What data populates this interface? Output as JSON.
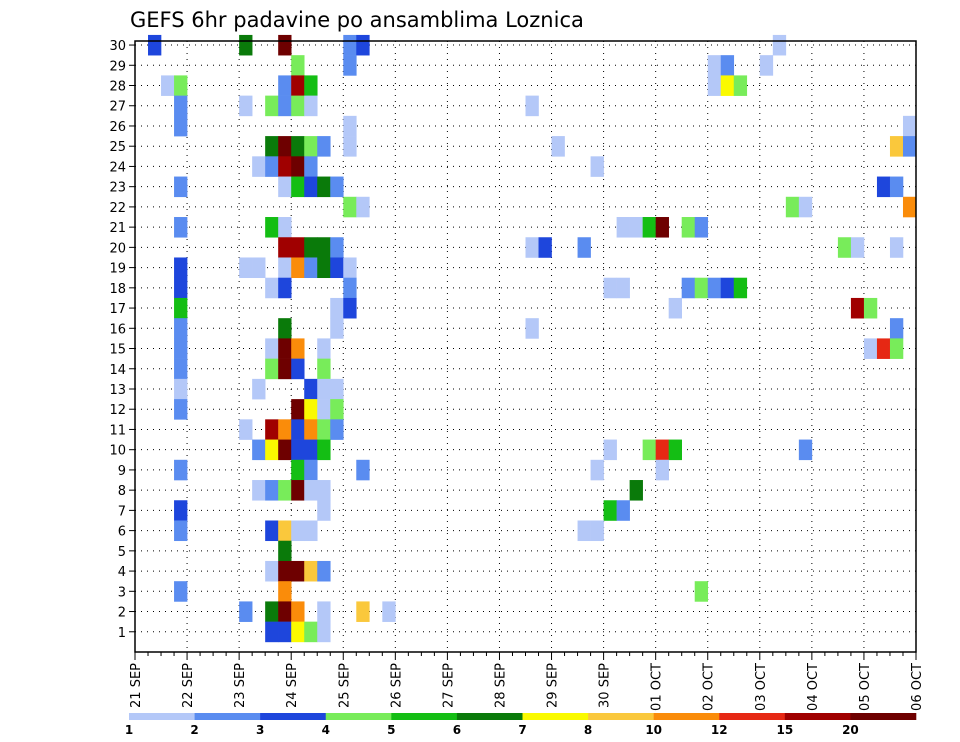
{
  "chart_data": {
    "type": "heatmap",
    "title": "GEFS 6hr padavine po ansamblima Loznica",
    "xlabel": "",
    "ylabel": "",
    "x_ticks": [
      "21 SEP",
      "22 SEP",
      "23 SEP",
      "24 SEP",
      "25 SEP",
      "26 SEP",
      "27 SEP",
      "28 SEP",
      "29 SEP",
      "30 SEP",
      "01 OCT",
      "02 OCT",
      "03 OCT",
      "04 OCT",
      "05 OCT",
      "06 OCT"
    ],
    "x_steps_per_day": 4,
    "x_range_steps": [
      0,
      60
    ],
    "y_ticks": [
      1,
      2,
      3,
      4,
      5,
      6,
      7,
      8,
      9,
      10,
      11,
      12,
      13,
      14,
      15,
      16,
      17,
      18,
      19,
      20,
      21,
      22,
      23,
      24,
      25,
      26,
      27,
      28,
      29,
      30
    ],
    "y_range": [
      0,
      30.2
    ],
    "grid": true,
    "legend": {
      "placement": "bottom",
      "colors": [
        "#b4c8f8",
        "#5a8cf0",
        "#1e46dc",
        "#78ec5a",
        "#14be14",
        "#0a7a0a",
        "#fafa00",
        "#fac83c",
        "#fa8c0a",
        "#e62814",
        "#a00000",
        "#6e0000"
      ],
      "labels": [
        "1",
        "2",
        "3",
        "4",
        "5",
        "6",
        "7",
        "8",
        "10",
        "12",
        "15",
        "20"
      ]
    },
    "cells": [
      [
        1,
        30,
        3
      ],
      [
        8,
        30,
        6
      ],
      [
        11,
        30,
        12
      ],
      [
        16,
        30,
        2
      ],
      [
        17,
        30,
        3
      ],
      [
        49,
        30,
        1
      ],
      [
        12,
        29,
        4
      ],
      [
        16,
        29,
        2
      ],
      [
        44,
        29,
        1
      ],
      [
        45,
        29,
        2
      ],
      [
        48,
        29,
        1
      ],
      [
        2,
        28,
        1
      ],
      [
        3,
        28,
        4
      ],
      [
        11,
        28,
        2
      ],
      [
        12,
        28,
        11
      ],
      [
        13,
        28,
        5
      ],
      [
        44,
        28,
        1
      ],
      [
        45,
        28,
        7
      ],
      [
        46,
        28,
        4
      ],
      [
        3,
        27,
        2
      ],
      [
        8,
        27,
        1
      ],
      [
        10,
        27,
        4
      ],
      [
        11,
        27,
        2
      ],
      [
        12,
        27,
        4
      ],
      [
        13,
        27,
        1
      ],
      [
        30,
        27,
        1
      ],
      [
        3,
        26,
        2
      ],
      [
        16,
        26,
        1
      ],
      [
        59,
        26,
        1
      ],
      [
        10,
        25,
        6
      ],
      [
        11,
        25,
        12
      ],
      [
        12,
        25,
        6
      ],
      [
        13,
        25,
        4
      ],
      [
        14,
        25,
        2
      ],
      [
        16,
        25,
        1
      ],
      [
        32,
        25,
        1
      ],
      [
        58,
        25,
        8
      ],
      [
        59,
        25,
        2
      ],
      [
        9,
        24,
        1
      ],
      [
        10,
        24,
        2
      ],
      [
        11,
        24,
        11
      ],
      [
        12,
        24,
        12
      ],
      [
        13,
        24,
        2
      ],
      [
        35,
        24,
        1
      ],
      [
        3,
        23,
        2
      ],
      [
        11,
        23,
        1
      ],
      [
        12,
        23,
        5
      ],
      [
        13,
        23,
        3
      ],
      [
        14,
        23,
        6
      ],
      [
        15,
        23,
        2
      ],
      [
        57,
        23,
        3
      ],
      [
        58,
        23,
        2
      ],
      [
        16,
        22,
        4
      ],
      [
        17,
        22,
        1
      ],
      [
        50,
        22,
        4
      ],
      [
        51,
        22,
        1
      ],
      [
        59,
        22,
        9
      ],
      [
        3,
        21,
        2
      ],
      [
        10,
        21,
        5
      ],
      [
        11,
        21,
        1
      ],
      [
        37,
        21,
        1
      ],
      [
        38,
        21,
        1
      ],
      [
        39,
        21,
        5
      ],
      [
        40,
        21,
        12
      ],
      [
        42,
        21,
        4
      ],
      [
        43,
        21,
        2
      ],
      [
        11,
        20,
        11
      ],
      [
        12,
        20,
        11
      ],
      [
        13,
        20,
        6
      ],
      [
        14,
        20,
        6
      ],
      [
        15,
        20,
        2
      ],
      [
        30,
        20,
        1
      ],
      [
        31,
        20,
        3
      ],
      [
        34,
        20,
        2
      ],
      [
        54,
        20,
        4
      ],
      [
        55,
        20,
        1
      ],
      [
        58,
        20,
        1
      ],
      [
        3,
        19,
        3
      ],
      [
        8,
        19,
        1
      ],
      [
        9,
        19,
        1
      ],
      [
        11,
        19,
        1
      ],
      [
        12,
        19,
        9
      ],
      [
        13,
        19,
        2
      ],
      [
        14,
        19,
        6
      ],
      [
        15,
        19,
        3
      ],
      [
        16,
        19,
        1
      ],
      [
        3,
        18,
        3
      ],
      [
        10,
        18,
        1
      ],
      [
        11,
        18,
        3
      ],
      [
        16,
        18,
        2
      ],
      [
        36,
        18,
        1
      ],
      [
        37,
        18,
        1
      ],
      [
        42,
        18,
        2
      ],
      [
        43,
        18,
        4
      ],
      [
        44,
        18,
        2
      ],
      [
        45,
        18,
        3
      ],
      [
        46,
        18,
        5
      ],
      [
        3,
        17,
        5
      ],
      [
        15,
        17,
        1
      ],
      [
        16,
        17,
        3
      ],
      [
        41,
        17,
        1
      ],
      [
        55,
        17,
        11
      ],
      [
        56,
        17,
        4
      ],
      [
        3,
        16,
        2
      ],
      [
        11,
        16,
        6
      ],
      [
        15,
        16,
        1
      ],
      [
        30,
        16,
        1
      ],
      [
        58,
        16,
        2
      ],
      [
        3,
        15,
        2
      ],
      [
        10,
        15,
        1
      ],
      [
        11,
        15,
        12
      ],
      [
        12,
        15,
        9
      ],
      [
        14,
        15,
        1
      ],
      [
        56,
        15,
        1
      ],
      [
        57,
        15,
        10
      ],
      [
        58,
        15,
        4
      ],
      [
        3,
        14,
        2
      ],
      [
        10,
        14,
        4
      ],
      [
        11,
        14,
        12
      ],
      [
        12,
        14,
        3
      ],
      [
        14,
        14,
        4
      ],
      [
        3,
        13,
        1
      ],
      [
        9,
        13,
        1
      ],
      [
        13,
        13,
        3
      ],
      [
        14,
        13,
        1
      ],
      [
        15,
        13,
        1
      ],
      [
        3,
        12,
        2
      ],
      [
        12,
        12,
        12
      ],
      [
        13,
        12,
        7
      ],
      [
        14,
        12,
        1
      ],
      [
        15,
        12,
        4
      ],
      [
        8,
        11,
        1
      ],
      [
        10,
        11,
        11
      ],
      [
        11,
        11,
        9
      ],
      [
        12,
        11,
        3
      ],
      [
        13,
        11,
        9
      ],
      [
        14,
        11,
        4
      ],
      [
        15,
        11,
        2
      ],
      [
        9,
        10,
        2
      ],
      [
        10,
        10,
        7
      ],
      [
        11,
        10,
        12
      ],
      [
        12,
        10,
        3
      ],
      [
        13,
        10,
        3
      ],
      [
        14,
        10,
        5
      ],
      [
        36,
        10,
        1
      ],
      [
        39,
        10,
        4
      ],
      [
        40,
        10,
        10
      ],
      [
        41,
        10,
        5
      ],
      [
        51,
        10,
        2
      ],
      [
        3,
        9,
        2
      ],
      [
        12,
        9,
        5
      ],
      [
        13,
        9,
        2
      ],
      [
        17,
        9,
        2
      ],
      [
        35,
        9,
        1
      ],
      [
        40,
        9,
        1
      ],
      [
        9,
        8,
        1
      ],
      [
        10,
        8,
        2
      ],
      [
        11,
        8,
        4
      ],
      [
        12,
        8,
        12
      ],
      [
        13,
        8,
        1
      ],
      [
        14,
        8,
        1
      ],
      [
        38,
        8,
        6
      ],
      [
        3,
        7,
        3
      ],
      [
        14,
        7,
        1
      ],
      [
        36,
        7,
        5
      ],
      [
        37,
        7,
        2
      ],
      [
        3,
        6,
        2
      ],
      [
        10,
        6,
        3
      ],
      [
        11,
        6,
        8
      ],
      [
        12,
        6,
        1
      ],
      [
        13,
        6,
        1
      ],
      [
        34,
        6,
        1
      ],
      [
        35,
        6,
        1
      ],
      [
        11,
        5,
        6
      ],
      [
        10,
        4,
        1
      ],
      [
        11,
        4,
        12
      ],
      [
        12,
        4,
        12
      ],
      [
        13,
        4,
        8
      ],
      [
        14,
        4,
        2
      ],
      [
        3,
        3,
        2
      ],
      [
        11,
        3,
        9
      ],
      [
        43,
        3,
        4
      ],
      [
        8,
        2,
        2
      ],
      [
        10,
        2,
        6
      ],
      [
        11,
        2,
        12
      ],
      [
        12,
        2,
        9
      ],
      [
        14,
        2,
        1
      ],
      [
        17,
        2,
        8
      ],
      [
        19,
        2,
        1
      ],
      [
        10,
        1,
        3
      ],
      [
        11,
        1,
        3
      ],
      [
        12,
        1,
        7
      ],
      [
        13,
        1,
        4
      ],
      [
        14,
        1,
        1
      ]
    ]
  }
}
